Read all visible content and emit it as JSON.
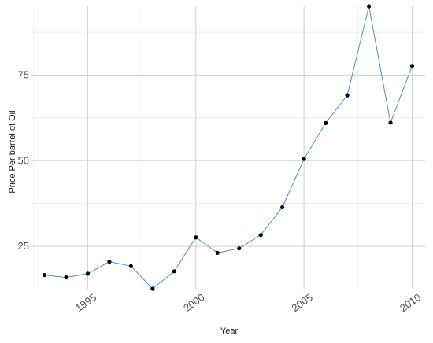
{
  "chart_data": {
    "type": "line",
    "title": "",
    "xlabel": "Year",
    "ylabel": "Price Per barrel of Oil",
    "xlim": [
      1992.4,
      2010.6
    ],
    "ylim": [
      12.6,
      95.1
    ],
    "x_ticks": [
      1995,
      2000,
      2005,
      2010
    ],
    "y_ticks": [
      25,
      50,
      75
    ],
    "x_tick_labels": [
      "1995",
      "2000",
      "2005",
      "2010"
    ],
    "y_tick_labels": [
      "25",
      "50",
      "75"
    ],
    "grid": true,
    "legend": "none",
    "line_color": "#4a8fc7",
    "point_color": "#000000",
    "series": [
      {
        "x": [
          1993,
          1994,
          1995,
          1996,
          1997,
          1998,
          1999,
          2000,
          2001,
          2002,
          2003,
          2004,
          2005,
          2006,
          2007,
          2008,
          2009,
          2010
        ],
        "y": [
          16.6,
          15.9,
          17.0,
          20.5,
          19.2,
          12.6,
          17.7,
          27.6,
          23.1,
          24.4,
          28.3,
          36.4,
          50.5,
          61.0,
          69.1,
          95.1,
          61.1,
          77.7
        ]
      }
    ]
  }
}
